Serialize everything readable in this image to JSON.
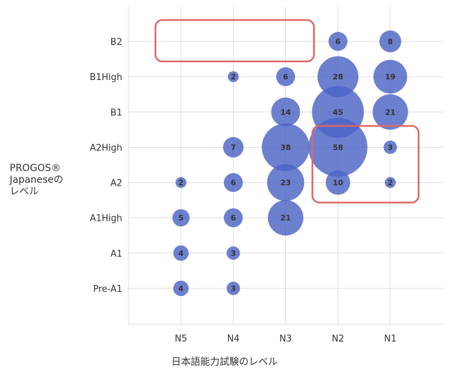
{
  "chart_data": {
    "type": "scatter",
    "subtype": "bubble",
    "x_categories": [
      "N5",
      "N4",
      "N3",
      "N2",
      "N1"
    ],
    "y_categories": [
      "Pre-A1",
      "A1",
      "A1High",
      "A2",
      "A2High",
      "B1",
      "B1High",
      "B2"
    ],
    "xlabel": "日本語能力試験のレベル",
    "ylabel_lines": [
      "PROGOS®",
      "Japaneseの",
      "レベル"
    ],
    "points": [
      {
        "x": "N5",
        "y": "Pre-A1",
        "value": 4
      },
      {
        "x": "N4",
        "y": "Pre-A1",
        "value": 3
      },
      {
        "x": "N5",
        "y": "A1",
        "value": 4
      },
      {
        "x": "N4",
        "y": "A1",
        "value": 3
      },
      {
        "x": "N5",
        "y": "A1High",
        "value": 5
      },
      {
        "x": "N4",
        "y": "A1High",
        "value": 6
      },
      {
        "x": "N3",
        "y": "A1High",
        "value": 21
      },
      {
        "x": "N5",
        "y": "A2",
        "value": 2
      },
      {
        "x": "N4",
        "y": "A2",
        "value": 6
      },
      {
        "x": "N3",
        "y": "A2",
        "value": 23
      },
      {
        "x": "N2",
        "y": "A2",
        "value": 10
      },
      {
        "x": "N1",
        "y": "A2",
        "value": 2
      },
      {
        "x": "N4",
        "y": "A2High",
        "value": 7
      },
      {
        "x": "N3",
        "y": "A2High",
        "value": 38
      },
      {
        "x": "N2",
        "y": "A2High",
        "value": 58
      },
      {
        "x": "N1",
        "y": "A2High",
        "value": 3
      },
      {
        "x": "N3",
        "y": "B1",
        "value": 14
      },
      {
        "x": "N2",
        "y": "B1",
        "value": 45
      },
      {
        "x": "N1",
        "y": "B1",
        "value": 21
      },
      {
        "x": "N4",
        "y": "B1High",
        "value": 2
      },
      {
        "x": "N3",
        "y": "B1High",
        "value": 6
      },
      {
        "x": "N2",
        "y": "B1High",
        "value": 28
      },
      {
        "x": "N1",
        "y": "B1High",
        "value": 19
      },
      {
        "x": "N2",
        "y": "B2",
        "value": 6
      },
      {
        "x": "N1",
        "y": "B2",
        "value": 8
      }
    ],
    "highlight_boxes": [
      {
        "x_from": "N5",
        "x_to": "N3",
        "y_from": "B2",
        "y_to": "B2"
      },
      {
        "x_from": "N2",
        "x_to": "N1",
        "y_from": "A2",
        "y_to": "A2High"
      }
    ],
    "grid": true,
    "colors": {
      "bubble": "#4c64c4",
      "highlight": "#e06666",
      "grid": "#dddddd",
      "bubble_label": "#333333"
    }
  }
}
